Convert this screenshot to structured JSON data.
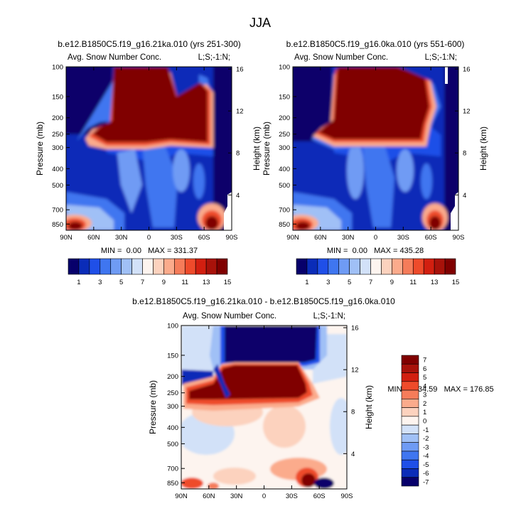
{
  "page": {
    "title": "JJA"
  },
  "chart_data": [
    {
      "type": "heatmap",
      "title": "b.e12.B1850C5.f19_g16.21ka.010 (yrs 251-300)",
      "subtitle_left": "Avg. Snow Number Conc.",
      "subtitle_right": "L;S;-1:N;",
      "ylabel": "Pressure (mb)",
      "ylabel_right": "Height (km)",
      "x_ticks": [
        "90N",
        "60N",
        "30N",
        "0",
        "30S",
        "60S",
        "90S"
      ],
      "y_ticks": [
        "100",
        "150",
        "200",
        "250",
        "300",
        "400",
        "500",
        "700",
        "850"
      ],
      "y_right_ticks": [
        "16",
        "12",
        "8",
        "4"
      ],
      "stats": "MIN =  0.00   MAX = 331.37",
      "colorbar_labels": [
        "1",
        "3",
        "5",
        "7",
        "9",
        "11",
        "13",
        "15"
      ],
      "colorbar_colors": [
        "#07006b",
        "#0a2cb8",
        "#1f4fe8",
        "#3f76f0",
        "#6f9bf4",
        "#a0c0f6",
        "#d2e1f8",
        "#fdf4ef",
        "#fcd2be",
        "#fbab8c",
        "#f57c5a",
        "#ee4b2b",
        "#d21f10",
        "#a8120a",
        "#800000"
      ],
      "data_note": "snow number concentration field, latitude vs pressure"
    },
    {
      "type": "heatmap",
      "title": "b.e12.B1850C5.f19_g16.0ka.010 (yrs 551-600)",
      "subtitle_left": "Avg. Snow Number Conc.",
      "subtitle_right": "L;S;-1:N;",
      "ylabel": "Pressure (mb)",
      "ylabel_right": "Height (km)",
      "x_ticks": [
        "90N",
        "60N",
        "30N",
        "0",
        "30S",
        "60S",
        "90S"
      ],
      "y_ticks": [
        "100",
        "150",
        "200",
        "250",
        "300",
        "400",
        "500",
        "700",
        "850"
      ],
      "y_right_ticks": [
        "16",
        "12",
        "8",
        "4"
      ],
      "stats": "MIN =  0.00   MAX = 435.28",
      "colorbar_labels": [
        "1",
        "3",
        "5",
        "7",
        "9",
        "11",
        "13",
        "15"
      ],
      "colorbar_colors": [
        "#07006b",
        "#0a2cb8",
        "#1f4fe8",
        "#3f76f0",
        "#6f9bf4",
        "#a0c0f6",
        "#d2e1f8",
        "#fdf4ef",
        "#fcd2be",
        "#fbab8c",
        "#f57c5a",
        "#ee4b2b",
        "#d21f10",
        "#a8120a",
        "#800000"
      ]
    },
    {
      "type": "heatmap",
      "title": "b.e12.B1850C5.f19_g16.21ka.010 - b.e12.B1850C5.f19_g16.0ka.010",
      "subtitle_left": "Avg. Snow Number Conc.",
      "subtitle_right": "L;S;-1:N;",
      "ylabel": "Pressure (mb)",
      "ylabel_right": "Height (km)",
      "x_ticks": [
        "90N",
        "60N",
        "30N",
        "0",
        "30S",
        "60S",
        "90S"
      ],
      "y_ticks": [
        "100",
        "150",
        "200",
        "250",
        "300",
        "400",
        "500",
        "700",
        "850"
      ],
      "y_right_ticks": [
        "16",
        "12",
        "8",
        "4"
      ],
      "stats": "MIN = -134.59   MAX = 176.85",
      "colorbar_labels": [
        "7",
        "6",
        "5",
        "4",
        "3",
        "2",
        "1",
        "0",
        "-1",
        "-2",
        "-3",
        "-4",
        "-5",
        "-6",
        "-7"
      ],
      "colorbar_colors": [
        "#800000",
        "#a8120a",
        "#d21f10",
        "#ee4b2b",
        "#f57c5a",
        "#fbab8c",
        "#fcd2be",
        "#fdf4ef",
        "#d2e1f8",
        "#a0c0f6",
        "#6f9bf4",
        "#3f76f0",
        "#1f4fe8",
        "#0a2cb8",
        "#07006b"
      ]
    }
  ]
}
